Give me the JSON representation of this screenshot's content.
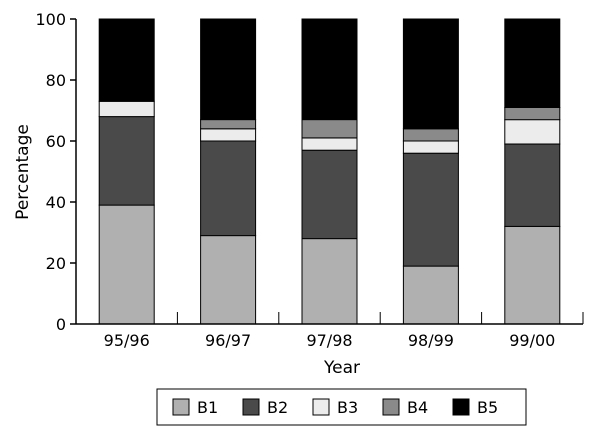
{
  "chart_data": {
    "type": "bar",
    "stacked": true,
    "categories": [
      "95/96",
      "96/97",
      "97/98",
      "98/99",
      "99/00"
    ],
    "series": [
      {
        "name": "B1",
        "color": "#b0b0b0",
        "values": [
          39,
          29,
          28,
          19,
          32
        ]
      },
      {
        "name": "B2",
        "color": "#4a4a4a",
        "values": [
          29,
          31,
          29,
          37,
          27
        ]
      },
      {
        "name": "B3",
        "color": "#ececec",
        "values": [
          5,
          4,
          4,
          4,
          8
        ]
      },
      {
        "name": "B4",
        "color": "#8a8a8a",
        "values": [
          0,
          3,
          6,
          4,
          4
        ]
      },
      {
        "name": "B5",
        "color": "#000000",
        "values": [
          27,
          33,
          33,
          36,
          29
        ]
      }
    ],
    "xlabel": "Year",
    "ylabel": "Percentage",
    "ylim": [
      0,
      100
    ],
    "yticks": [
      "0",
      "20",
      "40",
      "60",
      "80",
      "100"
    ],
    "grid": false,
    "legend_position": "bottom"
  }
}
